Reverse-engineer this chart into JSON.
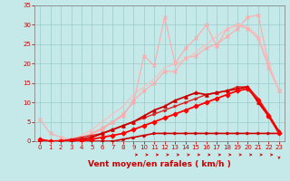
{
  "title": "",
  "xlabel": "Vent moyen/en rafales ( km/h )",
  "xlim": [
    -0.5,
    23.5
  ],
  "ylim": [
    0,
    35
  ],
  "yticks": [
    0,
    5,
    10,
    15,
    20,
    25,
    30,
    35
  ],
  "xticks": [
    0,
    1,
    2,
    3,
    4,
    5,
    6,
    7,
    8,
    9,
    10,
    11,
    12,
    13,
    14,
    15,
    16,
    17,
    18,
    19,
    20,
    21,
    22,
    23
  ],
  "background_color": "#c5e8e8",
  "grid_color": "#99cccc",
  "series": [
    {
      "x": [
        0,
        1,
        2,
        3,
        4,
        5,
        6,
        7,
        8,
        9,
        10,
        11,
        12,
        13,
        14,
        15,
        16,
        17,
        18,
        19,
        20,
        21,
        22,
        23
      ],
      "y": [
        5.5,
        2,
        1,
        0.5,
        1,
        2,
        3,
        5,
        7,
        10,
        22,
        19.5,
        32,
        20,
        24,
        26.5,
        30,
        24.5,
        29,
        30,
        29,
        26.5,
        19,
        13
      ],
      "color": "#ffaaaa",
      "lw": 0.8,
      "marker": "x",
      "ms": 3,
      "zorder": 2
    },
    {
      "x": [
        0,
        1,
        2,
        3,
        4,
        5,
        6,
        7,
        8,
        9,
        10,
        11,
        12,
        13,
        14,
        15,
        16,
        17,
        18,
        19,
        20,
        21,
        22,
        23
      ],
      "y": [
        0,
        0,
        0.2,
        0.5,
        1,
        2,
        3.5,
        5,
        6.5,
        10.5,
        13,
        15,
        18,
        18,
        21.5,
        22,
        24,
        25,
        27,
        29,
        32,
        32.5,
        20,
        13
      ],
      "color": "#ffaaaa",
      "lw": 0.8,
      "marker": "x",
      "ms": 3,
      "zorder": 2
    },
    {
      "x": [
        0,
        1,
        2,
        3,
        4,
        5,
        6,
        7,
        8,
        9,
        10,
        11,
        12,
        13,
        14,
        15,
        16,
        17,
        18,
        19,
        20,
        21,
        22,
        23
      ],
      "y": [
        0,
        0,
        0,
        0.5,
        1.5,
        3,
        5,
        7,
        9,
        12,
        14,
        16,
        19,
        20,
        21,
        23,
        25,
        27,
        29,
        30,
        29.5,
        27,
        20,
        13
      ],
      "color": "#ffbbbb",
      "lw": 0.8,
      "marker": null,
      "ms": 0,
      "zorder": 2
    },
    {
      "x": [
        0,
        1,
        2,
        3,
        4,
        5,
        6,
        7,
        8,
        9,
        10,
        11,
        12,
        13,
        14,
        15,
        16,
        17,
        18,
        19,
        20,
        21,
        22,
        23
      ],
      "y": [
        0,
        0,
        0,
        0,
        0,
        0,
        0,
        0,
        0.5,
        1,
        1.5,
        2,
        2,
        2,
        2,
        2,
        2,
        2,
        2,
        2,
        2,
        2,
        2,
        2
      ],
      "color": "#cc0000",
      "lw": 1.2,
      "marker": ">",
      "ms": 2,
      "zorder": 4
    },
    {
      "x": [
        0,
        1,
        2,
        3,
        4,
        5,
        6,
        7,
        8,
        9,
        10,
        11,
        12,
        13,
        14,
        15,
        16,
        17,
        18,
        19,
        20,
        21,
        22,
        23
      ],
      "y": [
        0,
        0,
        0,
        0.5,
        1,
        1.5,
        2,
        3,
        4,
        5,
        6,
        7,
        8,
        9,
        10,
        11,
        12,
        12.5,
        13,
        14,
        14,
        11,
        7,
        2.5
      ],
      "color": "#dd2222",
      "lw": 1.0,
      "marker": ">",
      "ms": 2,
      "zorder": 4
    },
    {
      "x": [
        0,
        1,
        2,
        3,
        4,
        5,
        6,
        7,
        8,
        9,
        10,
        11,
        12,
        13,
        14,
        15,
        16,
        17,
        18,
        19,
        20,
        21,
        22,
        23
      ],
      "y": [
        0,
        0,
        0.1,
        0.2,
        0.5,
        1,
        2,
        3,
        4,
        5,
        6.5,
        8,
        9,
        10.5,
        11.5,
        12.5,
        12,
        12.5,
        13,
        13.5,
        14,
        10,
        6.5,
        2.5
      ],
      "color": "#cc0000",
      "lw": 1.3,
      "marker": "^",
      "ms": 2.5,
      "zorder": 5
    },
    {
      "x": [
        0,
        1,
        2,
        3,
        4,
        5,
        6,
        7,
        8,
        9,
        10,
        11,
        12,
        13,
        14,
        15,
        16,
        17,
        18,
        19,
        20,
        21,
        22,
        23
      ],
      "y": [
        0.5,
        0,
        0,
        0,
        0.2,
        0.5,
        1,
        1.5,
        2,
        3,
        4,
        5,
        6,
        7,
        8,
        9,
        10,
        11,
        12,
        13,
        13.5,
        10.5,
        6.5,
        2
      ],
      "color": "#ff0000",
      "lw": 1.3,
      "marker": "D",
      "ms": 2.5,
      "zorder": 5
    }
  ],
  "xlabel_color": "#cc0000",
  "tick_color": "#cc0000",
  "label_fontsize": 6.5,
  "tick_fontsize": 5.0
}
